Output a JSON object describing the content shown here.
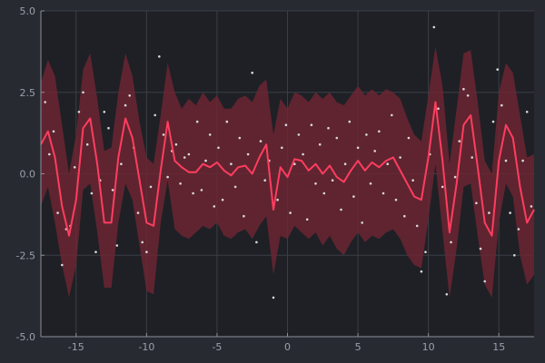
{
  "chart_data": {
    "type": "line",
    "title": "",
    "xlabel": "",
    "ylabel": "",
    "xlim": [
      -17.5,
      17.5
    ],
    "ylim": [
      -5,
      5
    ],
    "xticks": [
      -15,
      -10,
      -5,
      0,
      5,
      10,
      15
    ],
    "yticks": [
      -5,
      -2.5,
      0,
      2.5,
      5
    ],
    "xtick_labels": [
      "-15",
      "-10",
      "-5",
      "0",
      "5",
      "10",
      "15"
    ],
    "ytick_labels": [
      "-5.0",
      "-2.5",
      "0.0",
      "2.5",
      "5.0"
    ],
    "grid": true,
    "colors": {
      "background": "#272a31",
      "plot_background": "#1e2025",
      "grid": "#3a3e46",
      "axis": "#8a9099",
      "band": "#6b2633",
      "line": "#ff3d5f",
      "points": "#d9d9d9"
    },
    "series": [
      {
        "kind": "mean",
        "x": [
          -17.5,
          -17.0,
          -16.5,
          -16.0,
          -15.5,
          -15.0,
          -14.5,
          -14.0,
          -13.5,
          -13.0,
          -12.5,
          -12.0,
          -11.5,
          -11.0,
          -10.5,
          -10.0,
          -9.5,
          -9.0,
          -8.5,
          -8.0,
          -7.5,
          -7.0,
          -6.5,
          -6.0,
          -5.5,
          -5.0,
          -4.5,
          -4.0,
          -3.5,
          -3.0,
          -2.5,
          -2.0,
          -1.5,
          -1.0,
          -0.5,
          0.0,
          0.5,
          1.0,
          1.5,
          2.0,
          2.5,
          3.0,
          3.5,
          4.0,
          4.5,
          5.0,
          5.5,
          6.0,
          6.5,
          7.0,
          7.5,
          8.0,
          8.5,
          9.0,
          9.5,
          10.0,
          10.5,
          11.0,
          11.5,
          12.0,
          12.5,
          13.0,
          13.5,
          14.0,
          14.5,
          15.0,
          15.5,
          16.0,
          16.5,
          17.0,
          17.5
        ],
        "y": [
          0.9,
          1.3,
          0.5,
          -1.0,
          -1.9,
          -0.8,
          1.4,
          1.7,
          0.3,
          -1.5,
          -1.5,
          0.5,
          1.7,
          1.1,
          -0.2,
          -1.5,
          -1.6,
          0.1,
          1.6,
          0.4,
          0.2,
          0.05,
          0.05,
          0.3,
          0.2,
          0.35,
          0.1,
          -0.05,
          0.2,
          0.25,
          0.0,
          0.5,
          0.9,
          -1.1,
          0.2,
          -0.1,
          0.45,
          0.4,
          0.1,
          0.3,
          0.0,
          0.25,
          -0.1,
          -0.25,
          0.1,
          0.4,
          0.1,
          0.35,
          0.2,
          0.4,
          0.5,
          0.1,
          -0.3,
          -0.7,
          -0.8,
          0.5,
          2.2,
          0.4,
          -1.8,
          -0.3,
          1.5,
          1.8,
          0.2,
          -1.5,
          -1.9,
          0.4,
          1.5,
          1.1,
          -0.4,
          -1.5,
          -1.1
        ]
      },
      {
        "kind": "band",
        "upper": [
          2.8,
          3.5,
          3.0,
          1.5,
          0.0,
          1.2,
          3.2,
          3.7,
          2.3,
          0.7,
          0.8,
          2.5,
          3.7,
          3.0,
          1.6,
          0.5,
          0.3,
          1.8,
          3.4,
          2.5,
          2.0,
          2.3,
          2.1,
          2.5,
          2.2,
          2.4,
          2.0,
          2.0,
          2.3,
          2.4,
          2.2,
          2.7,
          2.9,
          1.2,
          2.3,
          2.0,
          2.5,
          2.4,
          2.2,
          2.5,
          2.3,
          2.5,
          2.2,
          2.1,
          2.4,
          2.7,
          2.4,
          2.6,
          2.4,
          2.6,
          2.5,
          2.3,
          1.7,
          1.2,
          1.0,
          2.4,
          3.9,
          2.7,
          0.3,
          2.0,
          3.7,
          3.8,
          2.2,
          0.4,
          0.0,
          2.5,
          3.4,
          3.1,
          1.8,
          0.5,
          0.6
        ],
        "lower": [
          -1.0,
          -0.4,
          -1.5,
          -2.8,
          -3.8,
          -2.8,
          -0.5,
          -0.3,
          -1.8,
          -3.5,
          -3.5,
          -1.5,
          -0.3,
          -0.8,
          -2.2,
          -3.6,
          -3.7,
          -1.5,
          -0.2,
          -1.7,
          -1.9,
          -2.0,
          -1.8,
          -1.6,
          -1.7,
          -1.5,
          -1.9,
          -2.0,
          -1.8,
          -1.7,
          -2.0,
          -1.6,
          -1.3,
          -3.1,
          -1.9,
          -2.0,
          -1.6,
          -1.8,
          -2.0,
          -1.8,
          -2.2,
          -1.9,
          -2.3,
          -2.5,
          -2.1,
          -1.8,
          -2.1,
          -1.9,
          -2.0,
          -1.8,
          -1.7,
          -2.0,
          -2.5,
          -2.8,
          -2.9,
          -1.4,
          0.3,
          -1.8,
          -3.8,
          -2.3,
          -0.4,
          -0.3,
          -1.9,
          -3.4,
          -3.8,
          -1.5,
          -0.3,
          -0.7,
          -2.5,
          -3.4,
          -3.1
        ]
      },
      {
        "kind": "scatter",
        "points": [
          [
            -17.2,
            2.2
          ],
          [
            -16.9,
            0.6
          ],
          [
            -16.6,
            1.3
          ],
          [
            -16.3,
            -1.2
          ],
          [
            -16.0,
            -2.8
          ],
          [
            -15.7,
            -1.7
          ],
          [
            -15.4,
            -1.6
          ],
          [
            -15.1,
            0.2
          ],
          [
            -14.8,
            1.9
          ],
          [
            -14.5,
            2.5
          ],
          [
            -14.2,
            0.9
          ],
          [
            -13.9,
            -0.6
          ],
          [
            -13.6,
            -2.4
          ],
          [
            -13.3,
            -0.2
          ],
          [
            -13.0,
            1.9
          ],
          [
            -12.7,
            1.4
          ],
          [
            -12.4,
            -0.5
          ],
          [
            -12.1,
            -2.2
          ],
          [
            -11.8,
            0.3
          ],
          [
            -11.5,
            2.1
          ],
          [
            -11.2,
            2.4
          ],
          [
            -10.9,
            0.8
          ],
          [
            -10.6,
            -1.2
          ],
          [
            -10.3,
            -2.1
          ],
          [
            -10.0,
            -2.4
          ],
          [
            -9.7,
            -0.4
          ],
          [
            -9.4,
            1.8
          ],
          [
            -9.1,
            3.6
          ],
          [
            -8.8,
            1.2
          ],
          [
            -8.5,
            -0.1
          ],
          [
            -8.2,
            0.7
          ],
          [
            -7.9,
            0.9
          ],
          [
            -7.6,
            -0.3
          ],
          [
            -7.3,
            0.5
          ],
          [
            -7.0,
            0.6
          ],
          [
            -6.7,
            -0.6
          ],
          [
            -6.4,
            1.6
          ],
          [
            -6.1,
            -0.5
          ],
          [
            -5.8,
            0.4
          ],
          [
            -5.5,
            1.2
          ],
          [
            -5.2,
            -1.0
          ],
          [
            -4.9,
            0.8
          ],
          [
            -4.6,
            -0.8
          ],
          [
            -4.3,
            1.6
          ],
          [
            -4.0,
            0.3
          ],
          [
            -3.7,
            -0.4
          ],
          [
            -3.4,
            1.1
          ],
          [
            -3.1,
            -1.3
          ],
          [
            -2.8,
            0.6
          ],
          [
            -2.5,
            3.1
          ],
          [
            -2.2,
            -2.1
          ],
          [
            -1.9,
            1.0
          ],
          [
            -1.6,
            -0.2
          ],
          [
            -1.3,
            0.4
          ],
          [
            -1.0,
            -3.8
          ],
          [
            -0.7,
            -0.8
          ],
          [
            -0.4,
            0.8
          ],
          [
            -0.1,
            1.5
          ],
          [
            0.2,
            -1.2
          ],
          [
            0.5,
            0.3
          ],
          [
            0.8,
            1.2
          ],
          [
            1.1,
            0.6
          ],
          [
            1.4,
            -1.4
          ],
          [
            1.7,
            1.5
          ],
          [
            2.0,
            -0.3
          ],
          [
            2.3,
            0.9
          ],
          [
            2.6,
            -0.6
          ],
          [
            2.9,
            1.4
          ],
          [
            3.2,
            -0.2
          ],
          [
            3.5,
            1.1
          ],
          [
            3.8,
            -1.1
          ],
          [
            4.1,
            0.3
          ],
          [
            4.4,
            1.6
          ],
          [
            4.7,
            -0.7
          ],
          [
            5.0,
            0.8
          ],
          [
            5.3,
            -1.5
          ],
          [
            5.6,
            1.2
          ],
          [
            5.9,
            -0.3
          ],
          [
            6.2,
            0.7
          ],
          [
            6.5,
            1.3
          ],
          [
            6.8,
            -0.6
          ],
          [
            7.1,
            0.3
          ],
          [
            7.4,
            1.8
          ],
          [
            7.7,
            -0.8
          ],
          [
            8.0,
            0.5
          ],
          [
            8.3,
            -1.3
          ],
          [
            8.6,
            1.1
          ],
          [
            8.9,
            -0.2
          ],
          [
            9.2,
            -1.6
          ],
          [
            9.5,
            -3.0
          ],
          [
            9.8,
            -2.4
          ],
          [
            10.1,
            0.6
          ],
          [
            10.4,
            4.5
          ],
          [
            10.7,
            2.0
          ],
          [
            11.0,
            -0.4
          ],
          [
            11.3,
            -3.7
          ],
          [
            11.6,
            -2.1
          ],
          [
            11.9,
            -0.1
          ],
          [
            12.2,
            1.0
          ],
          [
            12.5,
            2.6
          ],
          [
            12.8,
            2.4
          ],
          [
            13.1,
            0.5
          ],
          [
            13.4,
            -0.9
          ],
          [
            13.7,
            -2.3
          ],
          [
            14.0,
            -3.3
          ],
          [
            14.3,
            -1.2
          ],
          [
            14.6,
            1.6
          ],
          [
            14.9,
            3.2
          ],
          [
            15.2,
            2.1
          ],
          [
            15.5,
            0.4
          ],
          [
            15.8,
            -1.2
          ],
          [
            16.1,
            -2.5
          ],
          [
            16.4,
            -1.7
          ],
          [
            16.7,
            0.4
          ],
          [
            17.0,
            1.9
          ],
          [
            17.3,
            -1.0
          ]
        ]
      }
    ]
  }
}
